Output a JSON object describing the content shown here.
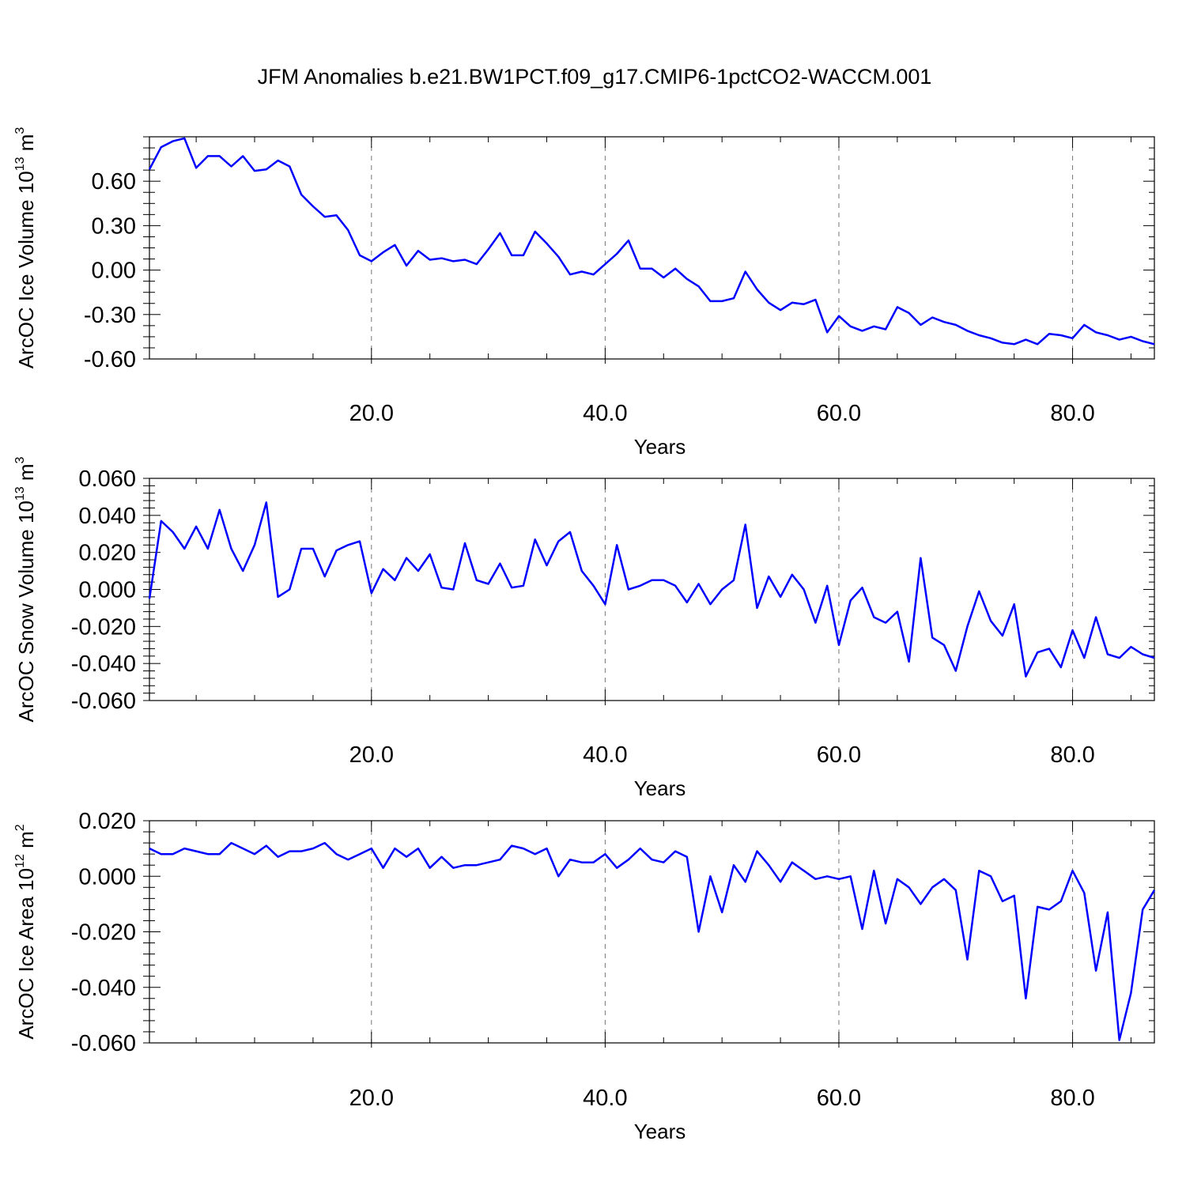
{
  "figure": {
    "title": "JFM Anomalies b.e21.BW1PCT.f09_g17.CMIP6-1pctCO2-WACCM.001"
  },
  "chart_data": [
    {
      "type": "line",
      "xlabel": "Years",
      "ylabel": {
        "prefix": "ArcOC Ice Volume 10",
        "exp": "13",
        "unit": " m",
        "unit_exp": "3"
      },
      "xlim": [
        1,
        87
      ],
      "ylim": [
        -0.6,
        0.9
      ],
      "xticks": [
        20,
        40,
        60,
        80
      ],
      "xtick_labels": [
        "20.0",
        "40.0",
        "60.0",
        "80.0"
      ],
      "yticks": [
        -0.6,
        -0.3,
        0.0,
        0.3,
        0.6
      ],
      "ytick_labels": [
        "-0.60",
        "-0.30",
        "0.00",
        "0.30",
        "0.60"
      ],
      "grid": "vertical-dashed",
      "series_color": "#0000ff",
      "x": [
        1,
        2,
        3,
        4,
        5,
        6,
        7,
        8,
        9,
        10,
        11,
        12,
        13,
        14,
        15,
        16,
        17,
        18,
        19,
        20,
        21,
        22,
        23,
        24,
        25,
        26,
        27,
        28,
        29,
        30,
        31,
        32,
        33,
        34,
        35,
        36,
        37,
        38,
        39,
        40,
        41,
        42,
        43,
        44,
        45,
        46,
        47,
        48,
        49,
        50,
        51,
        52,
        53,
        54,
        55,
        56,
        57,
        58,
        59,
        60,
        61,
        62,
        63,
        64,
        65,
        66,
        67,
        68,
        69,
        70,
        71,
        72,
        73,
        74,
        75,
        76,
        77,
        78,
        79,
        80,
        81,
        82,
        83,
        84,
        85,
        86,
        87
      ],
      "values": [
        0.68,
        0.83,
        0.87,
        0.89,
        0.69,
        0.77,
        0.77,
        0.7,
        0.77,
        0.67,
        0.68,
        0.74,
        0.7,
        0.51,
        0.43,
        0.36,
        0.37,
        0.27,
        0.1,
        0.06,
        0.12,
        0.17,
        0.03,
        0.13,
        0.07,
        0.08,
        0.06,
        0.07,
        0.04,
        0.14,
        0.25,
        0.1,
        0.1,
        0.26,
        0.18,
        0.09,
        -0.03,
        -0.01,
        -0.03,
        0.04,
        0.11,
        0.2,
        0.01,
        0.01,
        -0.05,
        0.01,
        -0.06,
        -0.11,
        -0.21,
        -0.21,
        -0.19,
        -0.01,
        -0.13,
        -0.22,
        -0.27,
        -0.22,
        -0.23,
        -0.2,
        -0.42,
        -0.31,
        -0.38,
        -0.41,
        -0.38,
        -0.4,
        -0.25,
        -0.29,
        -0.37,
        -0.32,
        -0.35,
        -0.37,
        -0.41,
        -0.44,
        -0.46,
        -0.49,
        -0.5,
        -0.47,
        -0.5,
        -0.43,
        -0.44,
        -0.46,
        -0.37,
        -0.42,
        -0.44,
        -0.47,
        -0.45,
        -0.48,
        -0.5
      ]
    },
    {
      "type": "line",
      "xlabel": "Years",
      "ylabel": {
        "prefix": "ArcOC Snow Volume 10",
        "exp": "13",
        "unit": " m",
        "unit_exp": "3"
      },
      "xlim": [
        1,
        87
      ],
      "ylim": [
        -0.06,
        0.06
      ],
      "xticks": [
        20,
        40,
        60,
        80
      ],
      "xtick_labels": [
        "20.0",
        "40.0",
        "60.0",
        "80.0"
      ],
      "yticks": [
        -0.06,
        -0.04,
        -0.02,
        0.0,
        0.02,
        0.04,
        0.06
      ],
      "ytick_labels": [
        "-0.060",
        "-0.040",
        "-0.020",
        "0.000",
        "0.020",
        "0.040",
        "0.060"
      ],
      "grid": "vertical-dashed",
      "series_color": "#0000ff",
      "x": [
        1,
        2,
        3,
        4,
        5,
        6,
        7,
        8,
        9,
        10,
        11,
        12,
        13,
        14,
        15,
        16,
        17,
        18,
        19,
        20,
        21,
        22,
        23,
        24,
        25,
        26,
        27,
        28,
        29,
        30,
        31,
        32,
        33,
        34,
        35,
        36,
        37,
        38,
        39,
        40,
        41,
        42,
        43,
        44,
        45,
        46,
        47,
        48,
        49,
        50,
        51,
        52,
        53,
        54,
        55,
        56,
        57,
        58,
        59,
        60,
        61,
        62,
        63,
        64,
        65,
        66,
        67,
        68,
        69,
        70,
        71,
        72,
        73,
        74,
        75,
        76,
        77,
        78,
        79,
        80,
        81,
        82,
        83,
        84,
        85,
        86,
        87
      ],
      "values": [
        -0.005,
        0.037,
        0.031,
        0.022,
        0.034,
        0.022,
        0.043,
        0.022,
        0.01,
        0.024,
        0.047,
        -0.004,
        0.0,
        0.022,
        0.022,
        0.007,
        0.021,
        0.024,
        0.026,
        -0.002,
        0.011,
        0.005,
        0.017,
        0.01,
        0.019,
        0.001,
        0.0,
        0.025,
        0.005,
        0.003,
        0.014,
        0.001,
        0.002,
        0.027,
        0.013,
        0.026,
        0.031,
        0.01,
        0.002,
        -0.008,
        0.024,
        0.0,
        0.002,
        0.005,
        0.005,
        0.002,
        -0.007,
        0.003,
        -0.008,
        0.0,
        0.005,
        0.035,
        -0.01,
        0.007,
        -0.004,
        0.008,
        0.0,
        -0.018,
        0.002,
        -0.03,
        -0.006,
        0.001,
        -0.015,
        -0.018,
        -0.012,
        -0.039,
        0.017,
        -0.026,
        -0.03,
        -0.044,
        -0.02,
        -0.001,
        -0.017,
        -0.025,
        -0.008,
        -0.047,
        -0.034,
        -0.032,
        -0.042,
        -0.022,
        -0.037,
        -0.015,
        -0.035,
        -0.037,
        -0.031,
        -0.035,
        -0.037
      ]
    },
    {
      "type": "line",
      "xlabel": "Years",
      "ylabel": {
        "prefix": "ArcOC Ice Area 10",
        "exp": "12",
        "unit": " m",
        "unit_exp": "2"
      },
      "xlim": [
        1,
        87
      ],
      "ylim": [
        -0.06,
        0.02
      ],
      "xticks": [
        20,
        40,
        60,
        80
      ],
      "xtick_labels": [
        "20.0",
        "40.0",
        "60.0",
        "80.0"
      ],
      "yticks": [
        -0.06,
        -0.04,
        -0.02,
        0.0,
        0.02
      ],
      "ytick_labels": [
        "-0.060",
        "-0.040",
        "-0.020",
        "0.000",
        "0.020"
      ],
      "grid": "vertical-dashed",
      "series_color": "#0000ff",
      "x": [
        1,
        2,
        3,
        4,
        5,
        6,
        7,
        8,
        9,
        10,
        11,
        12,
        13,
        14,
        15,
        16,
        17,
        18,
        19,
        20,
        21,
        22,
        23,
        24,
        25,
        26,
        27,
        28,
        29,
        30,
        31,
        32,
        33,
        34,
        35,
        36,
        37,
        38,
        39,
        40,
        41,
        42,
        43,
        44,
        45,
        46,
        47,
        48,
        49,
        50,
        51,
        52,
        53,
        54,
        55,
        56,
        57,
        58,
        59,
        60,
        61,
        62,
        63,
        64,
        65,
        66,
        67,
        68,
        69,
        70,
        71,
        72,
        73,
        74,
        75,
        76,
        77,
        78,
        79,
        80,
        81,
        82,
        83,
        84,
        85,
        86,
        87
      ],
      "values": [
        0.01,
        0.008,
        0.008,
        0.01,
        0.009,
        0.008,
        0.008,
        0.012,
        0.01,
        0.008,
        0.011,
        0.007,
        0.009,
        0.009,
        0.01,
        0.012,
        0.008,
        0.006,
        0.008,
        0.01,
        0.003,
        0.01,
        0.007,
        0.01,
        0.003,
        0.007,
        0.003,
        0.004,
        0.004,
        0.005,
        0.006,
        0.011,
        0.01,
        0.008,
        0.01,
        0.0,
        0.006,
        0.005,
        0.005,
        0.008,
        0.003,
        0.006,
        0.01,
        0.006,
        0.005,
        0.009,
        0.007,
        -0.02,
        0.0,
        -0.013,
        0.004,
        -0.002,
        0.009,
        0.004,
        -0.002,
        0.005,
        0.002,
        -0.001,
        0.0,
        -0.001,
        0.0,
        -0.019,
        0.002,
        -0.017,
        -0.001,
        -0.004,
        -0.01,
        -0.004,
        -0.001,
        -0.005,
        -0.03,
        0.002,
        0.0,
        -0.009,
        -0.007,
        -0.044,
        -0.011,
        -0.012,
        -0.009,
        0.002,
        -0.006,
        -0.034,
        -0.013,
        -0.059,
        -0.042,
        -0.012,
        -0.005
      ]
    }
  ]
}
